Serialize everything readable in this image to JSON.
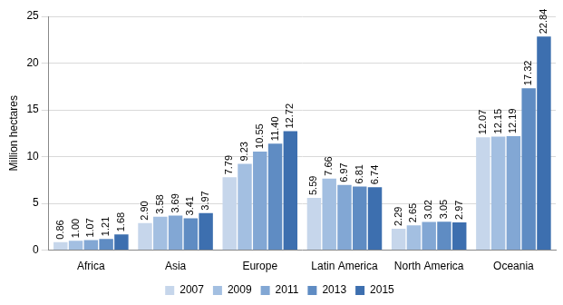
{
  "chart_data": {
    "type": "bar",
    "y_label": "Million hectares",
    "categories": [
      "Africa",
      "Asia",
      "Europe",
      "Latin America",
      "North America",
      "Oceania"
    ],
    "series": [
      {
        "name": "2007",
        "color": "#c6d6eb",
        "values": [
          0.86,
          2.9,
          7.79,
          5.59,
          2.29,
          12.07
        ],
        "value_labels": [
          "0.86",
          "2.90",
          "7.79",
          "5.59",
          "2.29",
          "12.07"
        ]
      },
      {
        "name": "2009",
        "color": "#a3bfe1",
        "values": [
          1.0,
          3.58,
          9.23,
          7.66,
          2.65,
          12.15
        ],
        "value_labels": [
          "1.00",
          "3.58",
          "9.23",
          "7.66",
          "2.65",
          "12.15"
        ]
      },
      {
        "name": "2011",
        "color": "#82a7d4",
        "values": [
          1.07,
          3.69,
          10.55,
          6.97,
          3.02,
          12.19
        ],
        "value_labels": [
          "1.07",
          "3.69",
          "10.55",
          "6.97",
          "3.02",
          "12.19"
        ]
      },
      {
        "name": "2013",
        "color": "#5f8cc3",
        "values": [
          1.21,
          3.41,
          11.4,
          6.81,
          3.05,
          17.32
        ],
        "value_labels": [
          "1.21",
          "3.41",
          "11.40",
          "6.81",
          "3.05",
          "17.32"
        ]
      },
      {
        "name": "2015",
        "color": "#3d6faf",
        "values": [
          1.68,
          3.97,
          12.72,
          6.74,
          2.97,
          22.84
        ],
        "value_labels": [
          "1.68",
          "3.97",
          "12.72",
          "6.74",
          "2.97",
          "22.84"
        ]
      }
    ],
    "ylim": [
      0,
      25
    ],
    "yticks": [
      0,
      5,
      10,
      15,
      20,
      25
    ],
    "grid": true,
    "legend": "bottom",
    "data_labels": true
  }
}
